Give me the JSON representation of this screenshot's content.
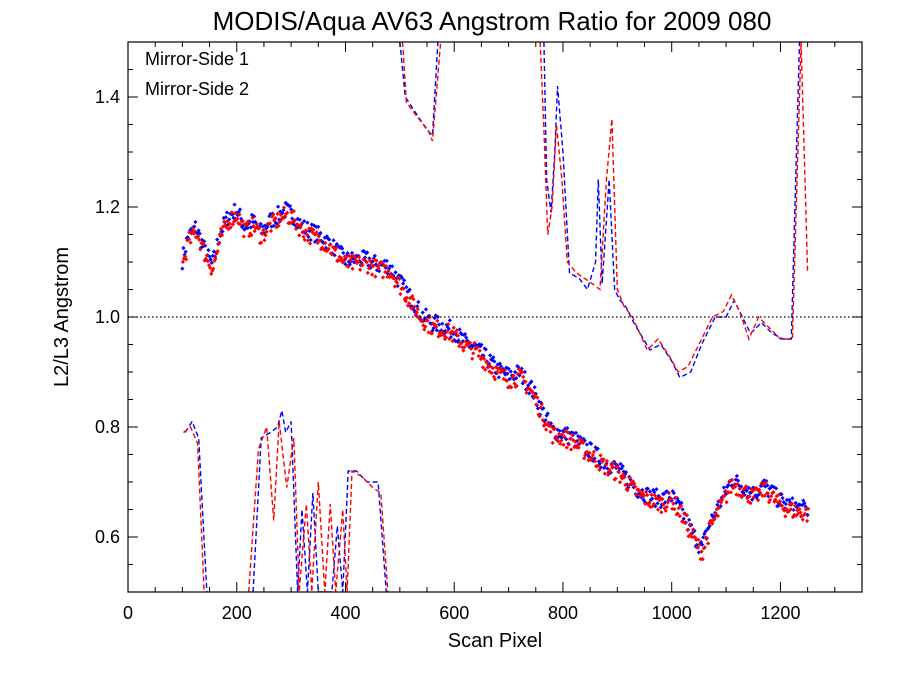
{
  "chart_data": {
    "type": "scatter",
    "title": "MODIS/Aqua AV63 Angstrom Ratio for 2009 080",
    "xlabel": "Scan Pixel",
    "ylabel": "L2/L3 Angstrom",
    "xlim": [
      0,
      1350
    ],
    "ylim": [
      0.5,
      1.5
    ],
    "x_ticks": [
      0,
      200,
      400,
      600,
      800,
      1000,
      1200
    ],
    "y_ticks": [
      0.6,
      0.8,
      1.0,
      1.2,
      1.4
    ],
    "x_tick_labels": [
      "0",
      "200",
      "400",
      "600",
      "800",
      "1000",
      "1200"
    ],
    "y_tick_labels": [
      "0.6",
      "0.8",
      "1.0",
      "1.2",
      "1.4"
    ],
    "reference_line": {
      "y": 1.0,
      "style": "dotted",
      "color": "#000000"
    },
    "legend_position": "top-left",
    "series": [
      {
        "name": "Mirror-Side 1",
        "color": "#0000ff",
        "marker": "diamond"
      },
      {
        "name": "Mirror-Side 2",
        "color": "#ff0000",
        "marker": "diamond"
      }
    ],
    "trend_points": [
      [
        100,
        1.1
      ],
      [
        110,
        1.14
      ],
      [
        125,
        1.16
      ],
      [
        140,
        1.12
      ],
      [
        155,
        1.09
      ],
      [
        170,
        1.15
      ],
      [
        185,
        1.18
      ],
      [
        200,
        1.19
      ],
      [
        215,
        1.16
      ],
      [
        230,
        1.17
      ],
      [
        245,
        1.15
      ],
      [
        260,
        1.17
      ],
      [
        275,
        1.18
      ],
      [
        290,
        1.19
      ],
      [
        305,
        1.18
      ],
      [
        320,
        1.16
      ],
      [
        340,
        1.15
      ],
      [
        360,
        1.14
      ],
      [
        380,
        1.12
      ],
      [
        400,
        1.1
      ],
      [
        420,
        1.1
      ],
      [
        440,
        1.1
      ],
      [
        460,
        1.09
      ],
      [
        480,
        1.09
      ],
      [
        500,
        1.06
      ],
      [
        520,
        1.03
      ],
      [
        540,
        1.0
      ],
      [
        560,
        0.985
      ],
      [
        580,
        0.98
      ],
      [
        600,
        0.97
      ],
      [
        620,
        0.95
      ],
      [
        640,
        0.94
      ],
      [
        660,
        0.92
      ],
      [
        680,
        0.9
      ],
      [
        700,
        0.89
      ],
      [
        720,
        0.895
      ],
      [
        740,
        0.87
      ],
      [
        760,
        0.83
      ],
      [
        780,
        0.79
      ],
      [
        800,
        0.785
      ],
      [
        820,
        0.775
      ],
      [
        840,
        0.76
      ],
      [
        860,
        0.745
      ],
      [
        880,
        0.73
      ],
      [
        900,
        0.72
      ],
      [
        920,
        0.7
      ],
      [
        940,
        0.68
      ],
      [
        960,
        0.67
      ],
      [
        980,
        0.665
      ],
      [
        1000,
        0.67
      ],
      [
        1020,
        0.64
      ],
      [
        1040,
        0.6
      ],
      [
        1055,
        0.575
      ],
      [
        1070,
        0.62
      ],
      [
        1090,
        0.66
      ],
      [
        1110,
        0.7
      ],
      [
        1130,
        0.69
      ],
      [
        1150,
        0.675
      ],
      [
        1170,
        0.69
      ],
      [
        1190,
        0.67
      ],
      [
        1210,
        0.655
      ],
      [
        1230,
        0.65
      ],
      [
        1250,
        0.645
      ]
    ],
    "upper_dashed_segments": [
      {
        "color": "#0000ff",
        "points": [
          [
            500,
            1.5
          ],
          [
            510,
            1.4
          ],
          [
            530,
            1.37
          ],
          [
            550,
            1.34
          ],
          [
            560,
            1.33
          ],
          [
            570,
            1.5
          ]
        ]
      },
      {
        "color": "#ff0000",
        "points": [
          [
            505,
            1.5
          ],
          [
            512,
            1.39
          ],
          [
            535,
            1.36
          ],
          [
            552,
            1.34
          ],
          [
            560,
            1.32
          ],
          [
            575,
            1.5
          ]
        ]
      },
      {
        "color": "#0000ff",
        "points": [
          [
            765,
            1.5
          ],
          [
            770,
            1.25
          ],
          [
            778,
            1.19
          ],
          [
            785,
            1.3
          ],
          [
            790,
            1.42
          ],
          [
            800,
            1.3
          ],
          [
            812,
            1.08
          ],
          [
            830,
            1.07
          ],
          [
            845,
            1.05
          ],
          [
            860,
            1.1
          ],
          [
            865,
            1.25
          ],
          [
            872,
            1.06
          ],
          [
            885,
            1.25
          ],
          [
            895,
            1.05
          ],
          [
            905,
            1.03
          ],
          [
            915,
            1.02
          ],
          [
            930,
            0.99
          ],
          [
            960,
            0.94
          ],
          [
            980,
            0.95
          ],
          [
            1000,
            0.92
          ],
          [
            1015,
            0.89
          ],
          [
            1035,
            0.9
          ],
          [
            1055,
            0.95
          ],
          [
            1080,
            1.0
          ],
          [
            1100,
            1.0
          ],
          [
            1115,
            1.03
          ],
          [
            1130,
            1.0
          ],
          [
            1145,
            0.97
          ],
          [
            1165,
            0.99
          ],
          [
            1185,
            0.97
          ],
          [
            1205,
            0.96
          ],
          [
            1220,
            0.96
          ],
          [
            1235,
            1.5
          ]
        ]
      },
      {
        "color": "#ff0000",
        "points": [
          [
            758,
            1.5
          ],
          [
            765,
            1.34
          ],
          [
            772,
            1.15
          ],
          [
            780,
            1.2
          ],
          [
            788,
            1.35
          ],
          [
            798,
            1.25
          ],
          [
            808,
            1.1
          ],
          [
            825,
            1.08
          ],
          [
            840,
            1.07
          ],
          [
            855,
            1.06
          ],
          [
            868,
            1.05
          ],
          [
            880,
            1.25
          ],
          [
            890,
            1.36
          ],
          [
            900,
            1.05
          ],
          [
            912,
            1.02
          ],
          [
            928,
            1.0
          ],
          [
            955,
            0.94
          ],
          [
            975,
            0.96
          ],
          [
            995,
            0.93
          ],
          [
            1012,
            0.9
          ],
          [
            1030,
            0.91
          ],
          [
            1050,
            0.95
          ],
          [
            1075,
            1.0
          ],
          [
            1095,
            1.01
          ],
          [
            1110,
            1.04
          ],
          [
            1125,
            1.01
          ],
          [
            1142,
            0.96
          ],
          [
            1160,
            1.0
          ],
          [
            1180,
            0.98
          ],
          [
            1200,
            0.96
          ],
          [
            1222,
            0.96
          ],
          [
            1238,
            1.5
          ],
          [
            1250,
            1.08
          ]
        ]
      }
    ],
    "lower_dashed_segments": [
      {
        "color": "#0000ff",
        "points": [
          [
            105,
            0.79
          ],
          [
            118,
            0.81
          ],
          [
            130,
            0.78
          ],
          [
            145,
            0.5
          ]
        ]
      },
      {
        "color": "#ff0000",
        "points": [
          [
            102,
            0.79
          ],
          [
            115,
            0.8
          ],
          [
            128,
            0.77
          ],
          [
            140,
            0.5
          ]
        ]
      },
      {
        "color": "#0000ff",
        "points": [
          [
            230,
            0.5
          ],
          [
            245,
            0.78
          ],
          [
            262,
            0.79
          ],
          [
            275,
            0.8
          ],
          [
            283,
            0.83
          ],
          [
            290,
            0.79
          ],
          [
            300,
            0.81
          ],
          [
            312,
            0.5
          ],
          [
            320,
            0.65
          ],
          [
            330,
            0.5
          ],
          [
            340,
            0.68
          ],
          [
            350,
            0.5
          ],
          [
            360,
            0.5
          ],
          [
            375,
            0.5
          ],
          [
            385,
            0.62
          ],
          [
            395,
            0.5
          ],
          [
            405,
            0.72
          ],
          [
            420,
            0.72
          ],
          [
            440,
            0.7
          ],
          [
            460,
            0.7
          ],
          [
            475,
            0.5
          ]
        ]
      },
      {
        "color": "#ff0000",
        "points": [
          [
            222,
            0.5
          ],
          [
            240,
            0.76
          ],
          [
            255,
            0.8
          ],
          [
            268,
            0.63
          ],
          [
            278,
            0.81
          ],
          [
            292,
            0.69
          ],
          [
            305,
            0.78
          ],
          [
            315,
            0.5
          ],
          [
            328,
            0.66
          ],
          [
            338,
            0.5
          ],
          [
            350,
            0.7
          ],
          [
            362,
            0.5
          ],
          [
            372,
            0.66
          ],
          [
            382,
            0.5
          ],
          [
            395,
            0.65
          ],
          [
            403,
            0.5
          ],
          [
            412,
            0.72
          ],
          [
            430,
            0.71
          ],
          [
            450,
            0.69
          ],
          [
            465,
            0.68
          ],
          [
            478,
            0.5
          ]
        ]
      }
    ]
  }
}
